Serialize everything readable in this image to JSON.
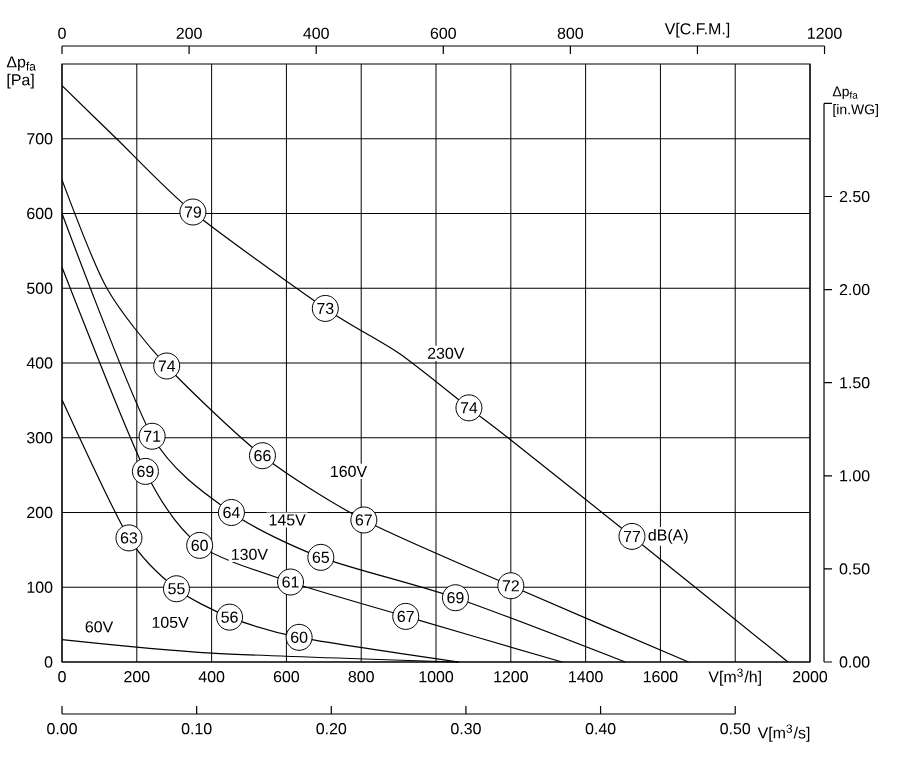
{
  "chart_data": {
    "type": "line",
    "xlabel": "V[m$^{3}$/h]",
    "x2label": "V[C.F.M.]",
    "ylabel": "Δp$_{fa}$ [Pa]",
    "y2label": "Δp$_{fa}$ [in.WG]",
    "xlim": [
      0,
      2000
    ],
    "xticks": [
      0,
      200,
      400,
      600,
      800,
      1000,
      1200,
      1400,
      1600,
      {
        "value": 1800,
        "label": null
      },
      2000
    ],
    "ylim": [
      0,
      800
    ],
    "yticks": [
      0,
      100,
      200,
      300,
      400,
      500,
      600,
      700
    ],
    "x2lim": [
      0,
      1200
    ],
    "x2ticks": [
      0,
      200,
      400,
      600,
      800,
      {
        "value": 1000,
        "label": null
      },
      1200
    ],
    "y2lim": [
      0,
      3
    ],
    "y2ticks": [
      {
        "value": 0,
        "label": "0.00"
      },
      {
        "value": 0.5,
        "label": "0.50"
      },
      {
        "value": 1,
        "label": "1.00"
      },
      {
        "value": 1.5,
        "label": "1.50"
      },
      {
        "value": 2,
        "label": "2.00"
      },
      {
        "value": 2.5,
        "label": "2.50"
      },
      {
        "value": 3,
        "label": null
      }
    ],
    "grid": true,
    "color": "#000000",
    "series": [
      {
        "name": "230V",
        "x": [
          0,
          146,
          350,
          704,
          901,
          1088,
          1195,
          1524,
          1941
        ],
        "values": [
          771,
          700,
          602,
          473,
          413,
          340,
          299,
          168,
          0
        ]
      },
      {
        "name": "160V",
        "x": [
          0,
          120,
          280,
          536,
          807,
          1200,
          1675
        ],
        "values": [
          645,
          500,
          396,
          276,
          190,
          102,
          0
        ]
      },
      {
        "name": "145V",
        "x": [
          0,
          241,
          453,
          692,
          1052,
          1506
        ],
        "values": [
          600,
          302,
          200,
          140,
          86,
          0
        ]
      },
      {
        "name": "130V",
        "x": [
          0,
          223,
          368,
          611,
          919,
          1337
        ],
        "values": [
          528,
          255,
          156,
          107,
          61,
          0
        ]
      },
      {
        "name": "105V",
        "x": [
          0,
          179,
          306,
          448,
          634,
          1061
        ],
        "values": [
          351,
          166,
          98,
          60,
          33,
          0
        ]
      },
      {
        "name": "60V",
        "x": [
          0,
          400,
          1060
        ],
        "values": [
          30,
          12,
          0
        ]
      }
    ],
    "annotations": [
      {
        "text": "79",
        "x": 350,
        "y": 602
      },
      {
        "text": "73",
        "x": 704,
        "y": 473
      },
      {
        "text": "74",
        "x": 1088,
        "y": 340
      },
      {
        "text": "77",
        "x": 1524,
        "y": 168
      },
      "dB(A)",
      {
        "text": "74",
        "x": 280,
        "y": 396
      },
      {
        "text": "66",
        "x": 536,
        "y": 276
      },
      {
        "text": "67",
        "x": 807,
        "y": 190
      },
      {
        "text": "72",
        "x": 1200,
        "y": 102
      },
      {
        "text": "71",
        "x": 241,
        "y": 302
      },
      {
        "text": "64",
        "x": 453,
        "y": 200
      },
      {
        "text": "65",
        "x": 692,
        "y": 140
      },
      {
        "text": "69",
        "x": 1052,
        "y": 86
      },
      {
        "text": "69",
        "x": 223,
        "y": 255
      },
      {
        "text": "60",
        "x": 368,
        "y": 156
      },
      {
        "text": "61",
        "x": 611,
        "y": 107
      },
      {
        "text": "67",
        "x": 919,
        "y": 61
      },
      {
        "text": "63",
        "x": 179,
        "y": 166
      },
      {
        "text": "55",
        "x": 306,
        "y": 98
      },
      {
        "text": "56",
        "x": 448,
        "y": 60
      },
      {
        "text": "60",
        "x": 634,
        "y": 33
      },
      "0.00",
      "0.10",
      "0.20",
      "0.30",
      "0.40",
      "0.50",
      "V[m$^{3}$/s]"
    ]
  }
}
